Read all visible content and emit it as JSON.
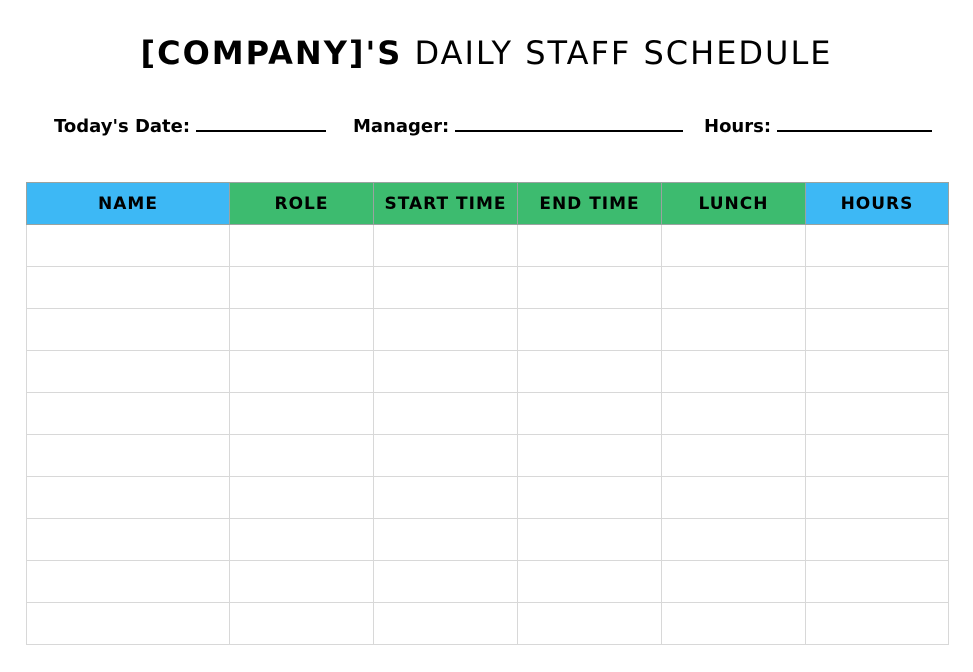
{
  "title": {
    "bold_part": "[COMPANY]'S",
    "light_part": "DAILY STAFF SCHEDULE"
  },
  "fields": {
    "date_label": "Today's Date:",
    "manager_label": "Manager:",
    "hours_label": "Hours:"
  },
  "table": {
    "columns": [
      {
        "label": "NAME",
        "color": "#3db8f5"
      },
      {
        "label": "ROLE",
        "color": "#3dbb6f"
      },
      {
        "label": "START TIME",
        "color": "#3dbb6f"
      },
      {
        "label": "END TIME",
        "color": "#3dbb6f"
      },
      {
        "label": "LUNCH",
        "color": "#3dbb6f"
      },
      {
        "label": "HOURS",
        "color": "#3db8f5"
      }
    ],
    "empty_row_count": 10
  }
}
